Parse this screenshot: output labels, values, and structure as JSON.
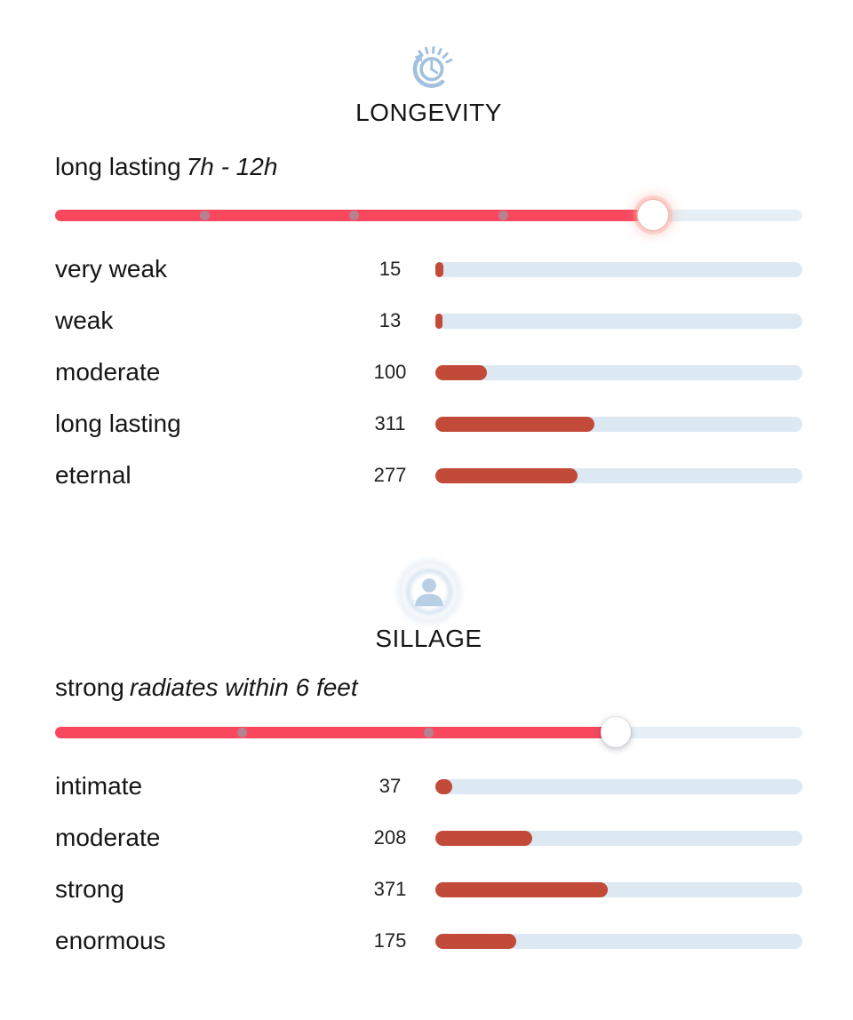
{
  "colors": {
    "slider_fill": "#f9485e",
    "slider_track": "#e6eff6",
    "bar_fill": "#c24a38",
    "bar_track": "#dce8f2",
    "icon_blue": "#a3c1dd",
    "person_blue": "#b9cfe5",
    "dot": "#a5909c",
    "text": "#1c1c1e"
  },
  "longevity": {
    "title": "LONGEVITY",
    "icon": "clock-history-icon",
    "verdict": "long lasting",
    "verdict_detail": "7h - 12h",
    "slider": {
      "percent": 80,
      "dots_percent": [
        20,
        40,
        60
      ]
    },
    "rows": [
      {
        "label": "very weak",
        "count": 15
      },
      {
        "label": "weak",
        "count": 13
      },
      {
        "label": "moderate",
        "count": 100
      },
      {
        "label": "long lasting",
        "count": 311
      },
      {
        "label": "eternal",
        "count": 277
      }
    ]
  },
  "sillage": {
    "title": "SILLAGE",
    "icon": "person-sillage-icon",
    "verdict": "strong",
    "verdict_detail": "radiates within 6 feet",
    "slider": {
      "percent": 75,
      "dots_percent": [
        25,
        50
      ]
    },
    "rows": [
      {
        "label": "intimate",
        "count": 37
      },
      {
        "label": "moderate",
        "count": 208
      },
      {
        "label": "strong",
        "count": 371
      },
      {
        "label": "enormous",
        "count": 175
      }
    ]
  },
  "chart_data": [
    {
      "type": "bar",
      "orientation": "horizontal",
      "title": "LONGEVITY",
      "subtitle": "long lasting 7h - 12h",
      "categories": [
        "very weak",
        "weak",
        "moderate",
        "long lasting",
        "eternal"
      ],
      "values": [
        15,
        13,
        100,
        311,
        277
      ],
      "xlabel": "",
      "ylabel": "",
      "note": "bar length = votes / total votes (716); slider at 80% with stops at 20/40/60%"
    },
    {
      "type": "bar",
      "orientation": "horizontal",
      "title": "SILLAGE",
      "subtitle": "strong radiates within 6 feet",
      "categories": [
        "intimate",
        "moderate",
        "strong",
        "enormous"
      ],
      "values": [
        37,
        208,
        371,
        175
      ],
      "xlabel": "",
      "ylabel": "",
      "note": "bar length = votes / total votes (791); slider at 75% with stops at 25/50%"
    }
  ]
}
